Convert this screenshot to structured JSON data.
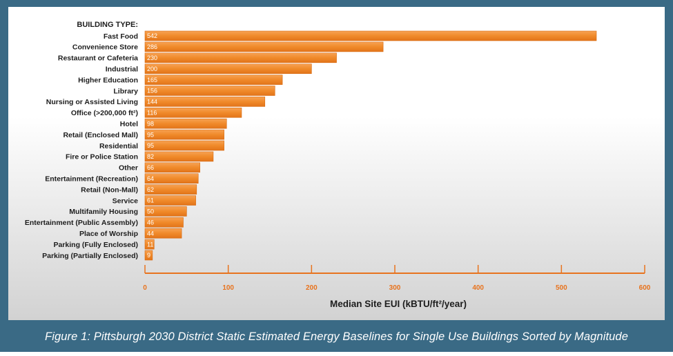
{
  "chart_data": {
    "type": "bar",
    "orientation": "horizontal",
    "category_header": "BUILDING TYPE:",
    "categories": [
      "Fast Food",
      "Convenience Store",
      "Restaurant or Cafeteria",
      "Industrial",
      "Higher Education",
      "Library",
      "Nursing or Assisted Living",
      "Office (>200,000 ft²)",
      "Hotel",
      "Retail (Enclosed Mall)",
      "Residential",
      "Fire or Police Station",
      "Other",
      "Entertainment (Recreation)",
      "Retail (Non-Mall)",
      "Service",
      "Multifamily Housing",
      "Entertainment (Public Assembly)",
      "Place of Worship",
      "Parking (Fully Enclosed)",
      "Parking (Partially Enclosed)"
    ],
    "values": [
      542,
      286,
      230,
      200,
      165,
      156,
      144,
      116,
      98,
      95,
      95,
      82,
      66,
      64,
      62,
      61,
      50,
      46,
      44,
      11,
      9
    ],
    "value_labels": [
      "542",
      "286",
      "230",
      "200",
      "165",
      "156",
      "144",
      "116",
      "98",
      "95",
      "95",
      "82",
      "66",
      "64",
      "62",
      "61",
      "50",
      "46",
      "44",
      "11",
      "9"
    ],
    "xlabel": "Median Site EUI (kBTU/ft²/year)",
    "xlim": [
      0,
      600
    ],
    "xticks": [
      "0",
      "100",
      "200",
      "300",
      "400",
      "500",
      "600"
    ],
    "grid": false,
    "colors": {
      "bar": "#f08a2a",
      "bar_edge": "#d86a10",
      "axis": "#e8731d",
      "frame": "#3a6a85"
    }
  },
  "caption": "Figure 1: Pittsburgh 2030 District Static Estimated Energy Baselines for Single Use Buildings Sorted by Magnitude"
}
